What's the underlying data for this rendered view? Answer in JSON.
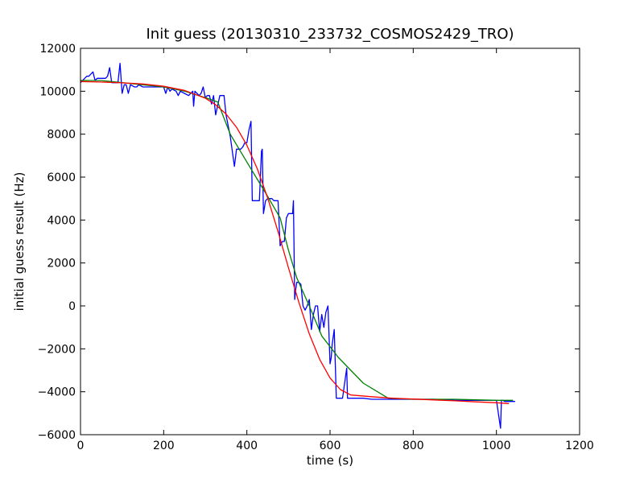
{
  "chart_data": {
    "type": "line",
    "title": "Init guess (20130310_233732_COSMOS2429_TRO)",
    "xlabel": "time (s)",
    "ylabel": "initial guess result (Hz)",
    "xlim": [
      0,
      1200
    ],
    "ylim": [
      -6000,
      12000
    ],
    "xticks": [
      0,
      200,
      400,
      600,
      800,
      1000,
      1200
    ],
    "yticks": [
      -6000,
      -4000,
      -2000,
      0,
      2000,
      4000,
      6000,
      8000,
      10000,
      12000
    ],
    "grid": false,
    "series": [
      {
        "color": "#0000ff",
        "x": [
          0,
          10,
          15,
          20,
          30,
          35,
          40,
          60,
          65,
          70,
          75,
          80,
          90,
          95,
          100,
          105,
          110,
          115,
          120,
          130,
          135,
          140,
          150,
          160,
          180,
          200,
          205,
          210,
          215,
          220,
          230,
          235,
          240,
          250,
          260,
          270,
          272,
          275,
          280,
          285,
          290,
          295,
          300,
          305,
          310,
          315,
          320,
          325,
          335,
          340,
          345,
          350,
          360,
          370,
          375,
          380,
          385,
          390,
          395,
          400,
          405,
          410,
          413,
          415,
          420,
          430,
          435,
          437,
          440,
          445,
          450,
          460,
          465,
          470,
          475,
          480,
          485,
          490,
          495,
          500,
          505,
          510,
          512,
          515,
          517,
          520,
          525,
          530,
          535,
          540,
          545,
          550,
          555,
          560,
          565,
          570,
          575,
          580,
          585,
          590,
          595,
          600,
          603,
          605,
          610,
          615,
          620,
          625,
          630,
          640,
          642,
          645,
          650,
          660,
          680,
          700,
          750,
          800,
          850,
          900,
          950,
          1000,
          1010,
          1012,
          1015,
          1020,
          1030,
          1045
        ],
        "y": [
          10400,
          10600,
          10700,
          10700,
          10900,
          10500,
          10600,
          10600,
          10700,
          11100,
          10400,
          10400,
          10400,
          11300,
          9900,
          10300,
          10300,
          9900,
          10300,
          10200,
          10200,
          10300,
          10200,
          10200,
          10200,
          10200,
          9900,
          10200,
          10000,
          10100,
          10000,
          9800,
          10000,
          9900,
          9800,
          10000,
          9300,
          10000,
          9900,
          9800,
          9900,
          10200,
          9700,
          9800,
          9800,
          9400,
          9800,
          8900,
          9800,
          9800,
          9800,
          8900,
          7900,
          6500,
          7300,
          7300,
          7300,
          7400,
          7600,
          7600,
          8200,
          8600,
          4900,
          4900,
          4900,
          4900,
          7200,
          7300,
          4300,
          4900,
          5000,
          5000,
          4900,
          4900,
          4900,
          2800,
          3000,
          3000,
          4100,
          4300,
          4300,
          4300,
          4900,
          300,
          700,
          1100,
          1100,
          1000,
          0,
          -200,
          0,
          300,
          -1100,
          -400,
          0,
          0,
          -1200,
          -400,
          -1000,
          -300,
          0,
          -2700,
          -2400,
          -1800,
          -1100,
          -4300,
          -4300,
          -4300,
          -4300,
          -2900,
          -4300,
          -4300,
          -4300,
          -4300,
          -4300,
          -4350,
          -4350,
          -4350,
          -4350,
          -4400,
          -4400,
          -4400,
          -5700,
          -4400,
          -4400,
          -4450,
          -4450,
          -4450
        ]
      },
      {
        "color": "#008000",
        "x": [
          0,
          50,
          100,
          150,
          200,
          250,
          300,
          330,
          360,
          400,
          450,
          480,
          500,
          520,
          550,
          580,
          620,
          680,
          740,
          800,
          900,
          1000,
          1040
        ],
        "y": [
          10500,
          10500,
          10400,
          10300,
          10200,
          10000,
          9700,
          9500,
          8000,
          6700,
          5100,
          4100,
          2600,
          1300,
          0,
          -1400,
          -2400,
          -3600,
          -4300,
          -4350,
          -4350,
          -4400,
          -4400
        ]
      },
      {
        "color": "#ff0000",
        "x": [
          0,
          50,
          100,
          150,
          200,
          250,
          300,
          325,
          350,
          375,
          400,
          425,
          450,
          475,
          500,
          525,
          550,
          575,
          600,
          625,
          650,
          700,
          750,
          800,
          850,
          900,
          950,
          1000,
          1030
        ],
        "y": [
          10450,
          10430,
          10390,
          10340,
          10230,
          10040,
          9680,
          9370,
          8940,
          8320,
          7480,
          6390,
          5030,
          3460,
          1780,
          160,
          -1300,
          -2490,
          -3360,
          -3900,
          -4150,
          -4230,
          -4300,
          -4340,
          -4380,
          -4420,
          -4470,
          -4510,
          -4550
        ]
      }
    ]
  }
}
